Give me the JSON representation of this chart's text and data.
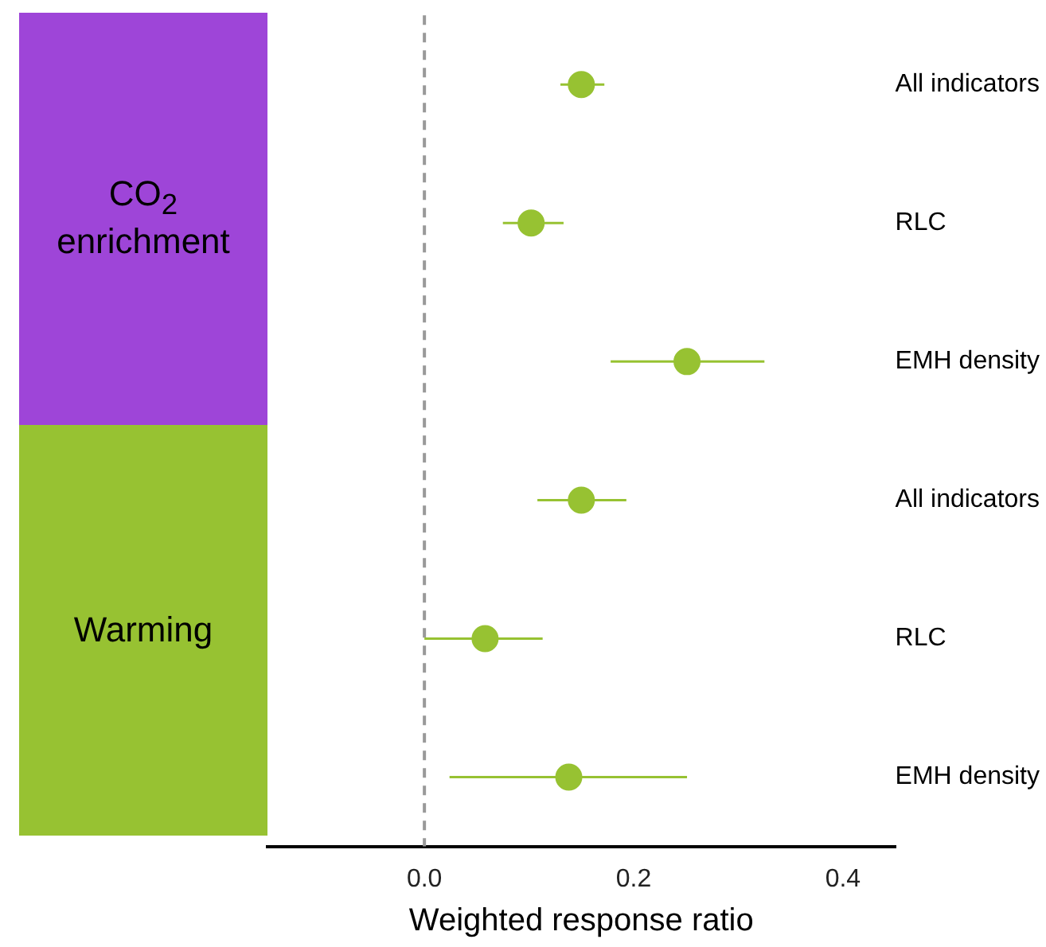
{
  "chart_data": {
    "type": "scatter",
    "orientation": "horizontal",
    "xlabel": "Weighted response ratio",
    "categories": [
      "All indicators",
      "RLC",
      "EMH density",
      "All indicators",
      "RLC",
      "EMH density"
    ],
    "values": [
      0.15,
      0.102,
      0.251,
      0.15,
      0.058,
      0.138
    ],
    "errors": [
      [
        0.13,
        0.172
      ],
      [
        0.075,
        0.133
      ],
      [
        0.178,
        0.325
      ],
      [
        0.108,
        0.193
      ],
      [
        0.0,
        0.113
      ],
      [
        0.024,
        0.251
      ]
    ],
    "color": "#97c232",
    "marker": "circle",
    "xlim": [
      -0.15,
      0.45
    ],
    "xticks": [
      {
        "value": 0,
        "label": "0.0"
      },
      {
        "value": 0.2,
        "label": "0.2"
      },
      {
        "value": 0.4,
        "label": "0.4"
      }
    ],
    "ref_lines": [
      {
        "axis": "x",
        "value": 0,
        "color": "#999999",
        "line_style": "dashed"
      }
    ],
    "annotations": [
      "CO$_{2}$ enrichment",
      "Warming"
    ],
    "grid": false,
    "legend": false
  }
}
